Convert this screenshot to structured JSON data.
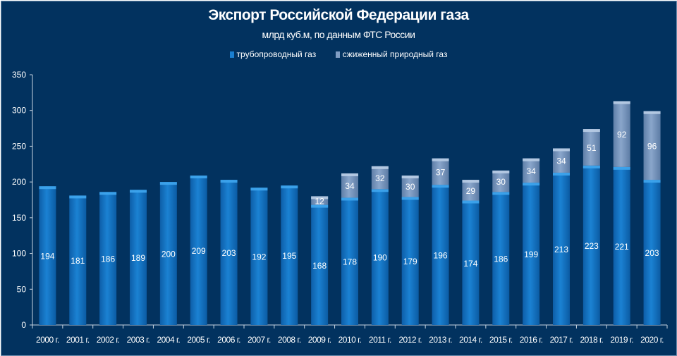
{
  "chart_data": {
    "type": "bar",
    "stacked": true,
    "title": "Экспорт Российской Федерации газа",
    "subtitle": "млрд куб.м, по данным ФТС России",
    "categories": [
      "2000 г.",
      "2001 г.",
      "2002 г.",
      "2003 г.",
      "2004 г.",
      "2005 г.",
      "2006 г.",
      "2007 г.",
      "2008 г.",
      "2009 г.",
      "2010 г.",
      "2011 г.",
      "2012 г.",
      "2013 г.",
      "2014 г.",
      "2015 г.",
      "2016 г.",
      "2017 г.",
      "2018 г.",
      "2019 г.",
      "2020 г."
    ],
    "series": [
      {
        "name": "трубопроводный газ",
        "color": "#1a7fd0",
        "values": [
          194,
          181,
          186,
          189,
          200,
          209,
          203,
          192,
          195,
          168,
          178,
          190,
          179,
          196,
          174,
          186,
          199,
          213,
          223,
          221,
          203
        ]
      },
      {
        "name": "сжиженный природный газ",
        "color": "#7f9dc4",
        "values": [
          null,
          null,
          null,
          null,
          null,
          null,
          null,
          null,
          null,
          12,
          34,
          32,
          30,
          37,
          29,
          30,
          34,
          34,
          51,
          92,
          96
        ]
      }
    ],
    "ylim": [
      0,
      350
    ],
    "yticks": [
      0,
      50,
      100,
      150,
      200,
      250,
      300,
      350
    ],
    "legend_position": "top",
    "grid": false,
    "background": "#02325f"
  }
}
